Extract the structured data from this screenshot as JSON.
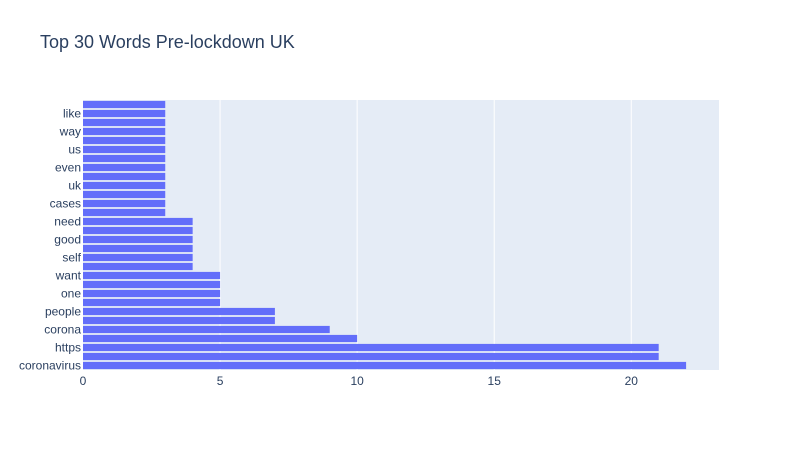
{
  "chart_data": {
    "type": "bar",
    "orientation": "horizontal",
    "title": "Top 30 Words Pre-lockdown UK",
    "xlabel": "",
    "ylabel": "",
    "xlim": [
      0,
      23.2
    ],
    "x_ticks": [
      0,
      5,
      10,
      15,
      20
    ],
    "grid": true,
    "colors": {
      "bar": "#636efa",
      "plot_background": "#e5ecf6",
      "grid": "#ffffff",
      "text": "#2a3f5f"
    },
    "categories": [
      "coronavirus",
      "",
      "https",
      "",
      "corona",
      "",
      "people",
      "",
      "one",
      "",
      "want",
      "",
      "self",
      "",
      "good",
      "",
      "need",
      "",
      "cases",
      "",
      "uk",
      "",
      "even",
      "",
      "us",
      "",
      "way",
      "",
      "like",
      ""
    ],
    "values": [
      22,
      21,
      21,
      10,
      9,
      7,
      7,
      5,
      5,
      5,
      5,
      4,
      4,
      4,
      4,
      4,
      4,
      3,
      3,
      3,
      3,
      3,
      3,
      3,
      3,
      3,
      3,
      3,
      3,
      3
    ]
  }
}
